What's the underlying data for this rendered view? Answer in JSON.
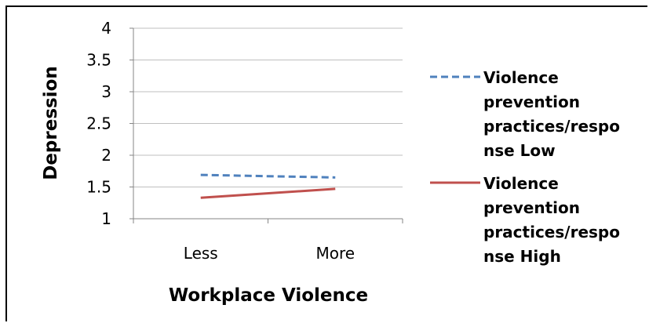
{
  "chart_data": {
    "type": "line",
    "categories": [
      "Less",
      "More"
    ],
    "ylabel": "Depression",
    "xlabel": "Workplace Violence",
    "ylim": [
      1,
      4
    ],
    "yticks": [
      "1",
      "1.5",
      "2",
      "2.5",
      "3",
      "3.5",
      "4"
    ],
    "grid": true,
    "legend_position": "right",
    "series": [
      {
        "name": "Violence prevention practices/response Low",
        "legend_lines": [
          "Violence",
          "prevention",
          "practices/respo",
          "nse Low"
        ],
        "values": [
          1.69,
          1.65
        ],
        "color": "#4F81BD",
        "style": "dashed"
      },
      {
        "name": "Violence prevention practices/response High",
        "legend_lines": [
          "Violence",
          "prevention",
          "practices/respo",
          "nse High"
        ],
        "values": [
          1.33,
          1.47
        ],
        "color": "#C0504D",
        "style": "solid"
      }
    ]
  }
}
